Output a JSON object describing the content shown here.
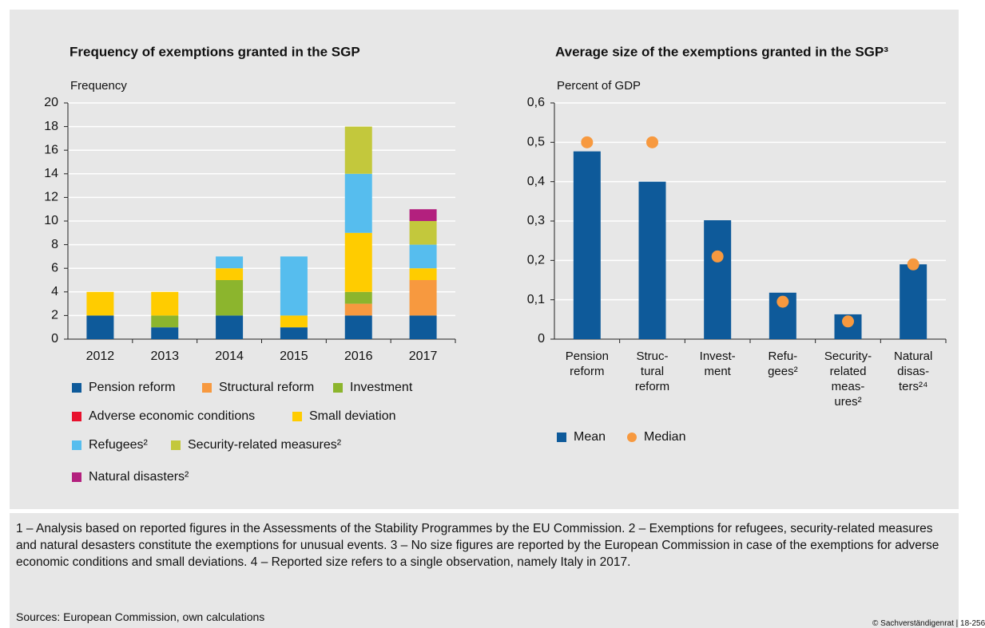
{
  "chart_data": [
    {
      "type": "bar",
      "stacked": true,
      "title": "Frequency of exemptions granted in the SGP",
      "ylabel": "Frequency",
      "categories": [
        "2012",
        "2013",
        "2014",
        "2015",
        "2016",
        "2017"
      ],
      "series": [
        {
          "name": "Pension reform",
          "color": "#0e5a9a",
          "values": [
            2,
            1,
            2,
            1,
            2,
            2
          ]
        },
        {
          "name": "Structural reform",
          "color": "#f7993f",
          "values": [
            0,
            0,
            0,
            0,
            1,
            3
          ]
        },
        {
          "name": "Investment",
          "color": "#8cb52d",
          "values": [
            0,
            1,
            3,
            0,
            1,
            0
          ]
        },
        {
          "name": "Adverse economic conditions",
          "color": "#e8112d",
          "values": [
            0,
            0,
            0,
            0,
            0,
            0
          ]
        },
        {
          "name": "Small deviation",
          "color": "#ffcc00",
          "values": [
            2,
            2,
            1,
            1,
            5,
            1
          ]
        },
        {
          "name": "Refugees²",
          "color": "#56bdee",
          "values": [
            0,
            0,
            1,
            5,
            5,
            2
          ]
        },
        {
          "name": "Security-related measures²",
          "color": "#c3c83c",
          "values": [
            0,
            0,
            0,
            0,
            4,
            2
          ]
        },
        {
          "name": "Natural disasters²",
          "color": "#b3207e",
          "values": [
            0,
            0,
            0,
            0,
            0,
            1
          ]
        }
      ],
      "ylim": [
        0,
        20
      ],
      "yticks": [
        0,
        2,
        4,
        6,
        8,
        10,
        12,
        14,
        16,
        18,
        20
      ],
      "grid": true
    },
    {
      "type": "bar",
      "stacked": false,
      "title": "Average size of the exemptions granted in the SGP³",
      "ylabel": "Percent of GDP",
      "categories": [
        [
          "Pension",
          "reform"
        ],
        [
          "Struc-",
          "tural",
          "reform"
        ],
        [
          "Invest-",
          "ment"
        ],
        [
          "Refu-",
          "gees²"
        ],
        [
          "Security-",
          "related",
          "meas-",
          "ures²"
        ],
        [
          "Natural",
          "disas-",
          "ters²⁴"
        ]
      ],
      "series": [
        {
          "name": "Mean",
          "type": "bar",
          "color": "#0e5a9a",
          "values": [
            0.477,
            0.4,
            0.302,
            0.118,
            0.063,
            0.19
          ]
        },
        {
          "name": "Median",
          "type": "scatter",
          "color": "#f7993f",
          "values": [
            0.5,
            0.5,
            0.21,
            0.095,
            0.045,
            0.19
          ]
        }
      ],
      "ylim": [
        0,
        0.6
      ],
      "yticks": [
        0,
        {
          "value": 0.1,
          "label": "0,1"
        },
        {
          "value": 0.2,
          "label": "0,2"
        },
        {
          "value": 0.3,
          "label": "0,3"
        },
        {
          "value": 0.4,
          "label": "0,4"
        },
        {
          "value": 0.5,
          "label": "0,5"
        },
        {
          "value": 0.6,
          "label": "0,6"
        }
      ],
      "grid": true
    }
  ],
  "notes": "1 – Analysis based on reported figures in the Assessments of the Stability Programmes by the EU Commission.  2 – Exemptions for refugees, security-related measures and natural desasters constitute the exemptions for unusual events.  3 – No size figures are reported by the European Commission in case of the exemptions for adverse economic conditions and small deviations.  4 – Reported size refers to a single observation, namely Italy in 2017.",
  "sources": "Sources: European Commission, own calculations",
  "copyright": "© Sachverständigenrat | 18-256"
}
